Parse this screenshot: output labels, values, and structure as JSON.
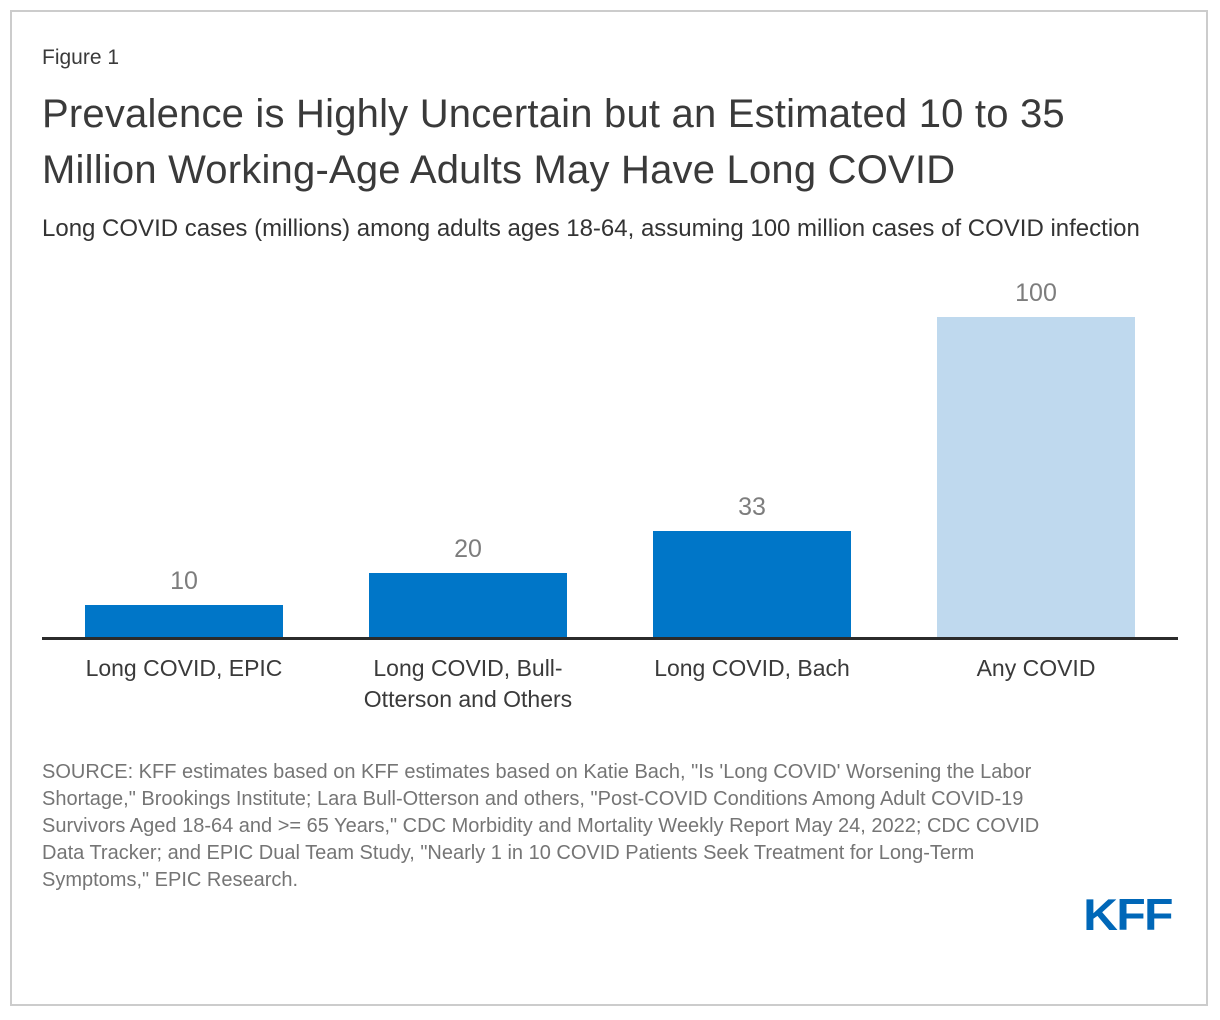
{
  "figure": {
    "label": "Figure 1"
  },
  "title": "Prevalence is Highly Uncertain but an Estimated 10 to 35 Million Working-Age Adults May Have Long COVID",
  "subtitle": "Long COVID cases (millions) among adults ages 18-64, assuming 100 million cases of COVID infection",
  "chart_data": {
    "type": "bar",
    "categories": [
      "Long COVID, EPIC",
      "Long COVID, Bull-Otterson and Others",
      "Long COVID, Bach",
      "Any COVID"
    ],
    "values": [
      10,
      20,
      33,
      100
    ],
    "value_labels": [
      "10",
      "20",
      "33",
      "100"
    ],
    "bar_colors": [
      "#0076c8",
      "#0076c8",
      "#0076c8",
      "#bfd9ee"
    ],
    "title": "Prevalence is Highly Uncertain but an Estimated 10 to 35 Million Working-Age Adults May Have Long COVID",
    "xlabel": "",
    "ylabel": "Long COVID cases (millions) among adults ages 18-64",
    "ylim": [
      0,
      100
    ],
    "grid": false,
    "legend": "none",
    "value_label_color": "#7d7d7d",
    "axis_line_color": "#2b2b2b"
  },
  "source": {
    "text": "SOURCE: KFF estimates based on KFF estimates based on Katie Bach, \"Is 'Long COVID' Worsening the Labor Shortage,\" Brookings Institute; Lara Bull-Otterson and others, \"Post-COVID Conditions Among Adult COVID-19 Survivors Aged 18-64 and >= 65 Years,\" CDC Morbidity and Mortality Weekly Report May 24, 2022; CDC COVID Data Tracker; and EPIC Dual Team Study, \"Nearly 1 in 10 COVID Patients Seek Treatment for Long-Term Symptoms,\" EPIC Research."
  },
  "logo": {
    "text": "KFF",
    "color": "#0067b8"
  },
  "colors": {
    "bar_primary": "#0076c8",
    "bar_light": "#bfd9ee",
    "title_text": "#3a3a3a",
    "muted_text": "#757575",
    "card_border": "#cccccc",
    "logo_blue": "#0067b8"
  }
}
